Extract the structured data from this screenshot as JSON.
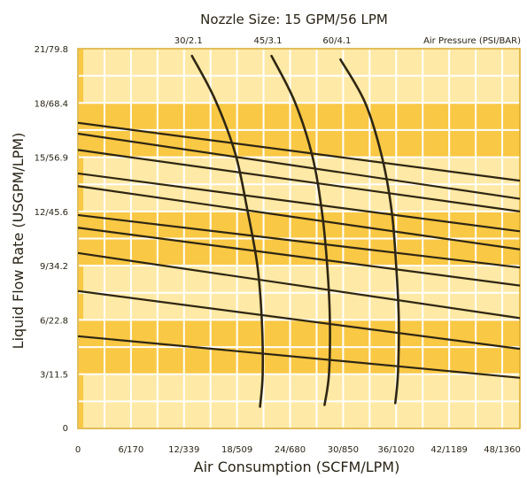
{
  "chart_data": {
    "type": "line",
    "title": "Nozzle Size: 15 GPM/56 LPM",
    "xlabel": "Air Consumption (SCFM/LPM)",
    "ylabel": "Liquid Flow Rate (USGPM/LPM)",
    "xlim": [
      0,
      50
    ],
    "ylim": [
      0,
      21
    ],
    "x_ticks": [
      {
        "value": 0,
        "label": "0"
      },
      {
        "value": 6,
        "label": "6/170"
      },
      {
        "value": 12,
        "label": "12/339"
      },
      {
        "value": 18,
        "label": "18/509"
      },
      {
        "value": 24,
        "label": "24/680"
      },
      {
        "value": 30,
        "label": "30/850"
      },
      {
        "value": 36,
        "label": "36/1020"
      },
      {
        "value": 42,
        "label": "42/1189"
      },
      {
        "value": 48,
        "label": "48/1360"
      }
    ],
    "y_ticks": [
      {
        "value": 0,
        "label": "0"
      },
      {
        "value": 3,
        "label": "3/11.5"
      },
      {
        "value": 6,
        "label": "6/22.8"
      },
      {
        "value": 9,
        "label": "9/34.2"
      },
      {
        "value": 12,
        "label": "12/45.6"
      },
      {
        "value": 15,
        "label": "15/56.9"
      },
      {
        "value": 18,
        "label": "18/68.4"
      },
      {
        "value": 21,
        "label": "21/79.8"
      }
    ],
    "air_pressure_legend": "Air Pressure (PSI/BAR)",
    "air_pressure_curves": [
      {
        "label": "30/2.1",
        "points": [
          [
            12.9,
            20.6
          ],
          [
            15.5,
            18.2
          ],
          [
            17.8,
            15.2
          ],
          [
            19.2,
            12.0
          ],
          [
            20.3,
            9.0
          ],
          [
            20.8,
            6.0
          ],
          [
            20.9,
            3.0
          ],
          [
            20.6,
            1.2
          ]
        ]
      },
      {
        "label": "45/3.1",
        "points": [
          [
            21.9,
            20.6
          ],
          [
            24.5,
            18.1
          ],
          [
            26.5,
            15.1
          ],
          [
            27.6,
            12.0
          ],
          [
            28.2,
            9.0
          ],
          [
            28.5,
            6.0
          ],
          [
            28.4,
            3.0
          ],
          [
            27.9,
            1.3
          ]
        ]
      },
      {
        "label": "60/4.1",
        "points": [
          [
            29.7,
            20.4
          ],
          [
            32.5,
            18.0
          ],
          [
            34.4,
            15.0
          ],
          [
            35.5,
            12.0
          ],
          [
            36.0,
            9.0
          ],
          [
            36.3,
            6.0
          ],
          [
            36.2,
            3.0
          ],
          [
            35.9,
            1.4
          ]
        ]
      }
    ],
    "liquid_lines": [
      {
        "points": [
          [
            0,
            16.9
          ],
          [
            50,
            13.7
          ]
        ]
      },
      {
        "points": [
          [
            0,
            16.3
          ],
          [
            50,
            12.7
          ]
        ]
      },
      {
        "points": [
          [
            0,
            15.4
          ],
          [
            50,
            12.0
          ]
        ]
      },
      {
        "points": [
          [
            0,
            14.1
          ],
          [
            50,
            10.9
          ]
        ]
      },
      {
        "points": [
          [
            0,
            13.4
          ],
          [
            50,
            9.9
          ]
        ]
      },
      {
        "points": [
          [
            0,
            11.8
          ],
          [
            50,
            8.9
          ]
        ]
      },
      {
        "points": [
          [
            0,
            11.1
          ],
          [
            50,
            7.9
          ]
        ]
      },
      {
        "points": [
          [
            0,
            9.7
          ],
          [
            50,
            6.1
          ]
        ]
      },
      {
        "points": [
          [
            0,
            7.6
          ],
          [
            50,
            4.4
          ]
        ]
      },
      {
        "points": [
          [
            0,
            5.1
          ],
          [
            50,
            2.8
          ]
        ]
      }
    ],
    "grid": true,
    "colors": {
      "light_band": "#ffe9a6",
      "dark_band": "#f9c845",
      "grid_line": "#ffffff",
      "border": "#d8a925",
      "curve": "#2e2612",
      "text": "#2a2416"
    }
  }
}
